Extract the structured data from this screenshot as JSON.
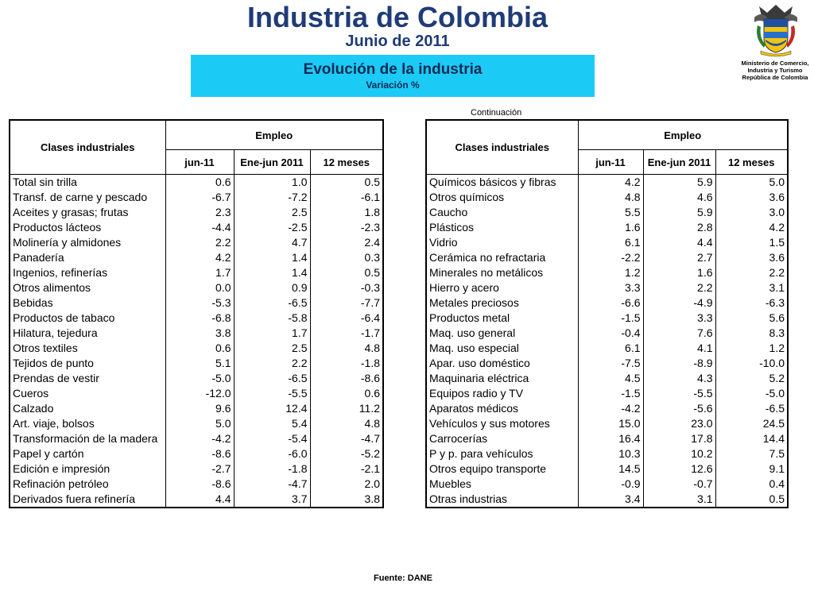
{
  "header": {
    "title": "Industria de Colombia",
    "subtitle": "Junio de 2011",
    "banner_title": "Evolución de la industria",
    "banner_subtitle": "Variación %"
  },
  "logo": {
    "icon": "colombia-coat-of-arms-icon",
    "ministry_lines": [
      "Ministerio de Comercio,",
      "Industria y Turismo",
      "República de Colombia"
    ]
  },
  "continuation": "Continuación",
  "columns": {
    "classes": "Clases industriales",
    "group": "Empleo",
    "c1": "jun-11",
    "c2": "Ene-jun 2011",
    "c3": "12 meses"
  },
  "left_rows": [
    [
      "Total sin trilla",
      "0.6",
      "1.0",
      "0.5"
    ],
    [
      "Transf. de carne y pescado",
      "-6.7",
      "-7.2",
      "-6.1"
    ],
    [
      "Aceites y grasas; frutas",
      "2.3",
      "2.5",
      "1.8"
    ],
    [
      "Productos lácteos",
      "-4.4",
      "-2.5",
      "-2.3"
    ],
    [
      "Molinería y almidones",
      "2.2",
      "4.7",
      "2.4"
    ],
    [
      "Panadería",
      "4.2",
      "1.4",
      "0.3"
    ],
    [
      "Ingenios, refinerías",
      "1.7",
      "1.4",
      "0.5"
    ],
    [
      "Otros alimentos",
      "0.0",
      "0.9",
      "-0.3"
    ],
    [
      "Bebidas",
      "-5.3",
      "-6.5",
      "-7.7"
    ],
    [
      "Productos de tabaco",
      "-6.8",
      "-5.8",
      "-6.4"
    ],
    [
      "Hilatura, tejedura",
      "3.8",
      "1.7",
      "-1.7"
    ],
    [
      "Otros textiles",
      "0.6",
      "2.5",
      "4.8"
    ],
    [
      "Tejidos de punto",
      "5.1",
      "2.2",
      "-1.8"
    ],
    [
      "Prendas de vestir",
      "-5.0",
      "-6.5",
      "-8.6"
    ],
    [
      "Cueros",
      "-12.0",
      "-5.5",
      "0.6"
    ],
    [
      "Calzado",
      "9.6",
      "12.4",
      "11.2"
    ],
    [
      "Art. viaje, bolsos",
      "5.0",
      "5.4",
      "4.8"
    ],
    [
      "Transformación de la madera",
      "-4.2",
      "-5.4",
      "-4.7"
    ],
    [
      "Papel y cartón",
      "-8.6",
      "-6.0",
      "-5.2"
    ],
    [
      "Edición e impresión",
      "-2.7",
      "-1.8",
      "-2.1"
    ],
    [
      "Refinación petróleo",
      "-8.6",
      "-4.7",
      "2.0"
    ],
    [
      "Derivados fuera refinería",
      "4.4",
      "3.7",
      "3.8"
    ]
  ],
  "right_rows": [
    [
      "Químicos básicos y fibras",
      "4.2",
      "5.9",
      "5.0"
    ],
    [
      "Otros químicos",
      "4.8",
      "4.6",
      "3.6"
    ],
    [
      "Caucho",
      "5.5",
      "5.9",
      "3.0"
    ],
    [
      "Plásticos",
      "1.6",
      "2.8",
      "4.2"
    ],
    [
      "Vidrio",
      "6.1",
      "4.4",
      "1.5"
    ],
    [
      "Cerámica no refractaria",
      "-2.2",
      "2.7",
      "3.6"
    ],
    [
      "Minerales no metálicos",
      "1.2",
      "1.6",
      "2.2"
    ],
    [
      "Hierro y acero",
      "3.3",
      "2.2",
      "3.1"
    ],
    [
      "Metales preciosos",
      "-6.6",
      "-4.9",
      "-6.3"
    ],
    [
      "Productos metal",
      "-1.5",
      "3.3",
      "5.6"
    ],
    [
      "Maq. uso general",
      "-0.4",
      "7.6",
      "8.3"
    ],
    [
      "Maq. uso especial",
      "6.1",
      "4.1",
      "1.2"
    ],
    [
      "Apar. uso doméstico",
      "-7.5",
      "-8.9",
      "-10.0"
    ],
    [
      "Maquinaria eléctrica",
      "4.5",
      "4.3",
      "5.2"
    ],
    [
      "Equipos radio y TV",
      "-1.5",
      "-5.5",
      "-5.0"
    ],
    [
      "Aparatos médicos",
      "-4.2",
      "-5.6",
      "-6.5"
    ],
    [
      "Vehículos y sus motores",
      "15.0",
      "23.0",
      "24.5"
    ],
    [
      "Carrocerías",
      "16.4",
      "17.8",
      "14.4"
    ],
    [
      "P y p. para vehículos",
      "10.3",
      "10.2",
      "7.5"
    ],
    [
      "Otros equipo transporte",
      "14.5",
      "12.6",
      "9.1"
    ],
    [
      "Muebles",
      "-0.9",
      "-0.7",
      "0.4"
    ],
    [
      "Otras industrias",
      "3.4",
      "3.1",
      "0.5"
    ]
  ],
  "footer": "Fuente: DANE"
}
